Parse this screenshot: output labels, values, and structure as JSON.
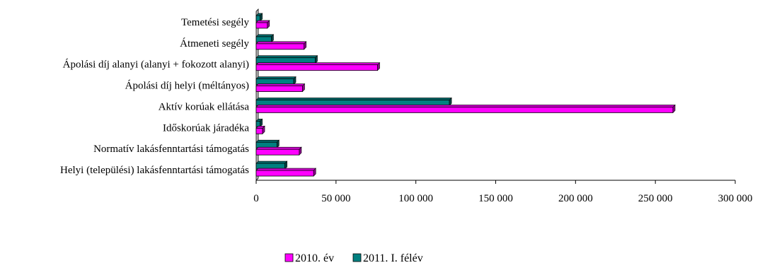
{
  "chart_data": {
    "type": "bar",
    "orientation": "horizontal",
    "style": "3d",
    "categories": [
      "Temetési segély",
      "Átmeneti segély",
      "Ápolási díj alanyi (alanyi + fokozott alanyi)",
      "Ápolási díj helyi (méltányos)",
      "Aktív korúak ellátása",
      "Időskorúak járadéka",
      "Normatív lakásfenntartási támogatás",
      "Helyi (települési) lakásfenntartási támogatás"
    ],
    "series": [
      {
        "name": "2010. év",
        "color": "#ff00ff",
        "values": [
          7000,
          30000,
          76000,
          29000,
          261000,
          4000,
          27000,
          36000
        ]
      },
      {
        "name": "2011. I. félév",
        "color": "#008080",
        "values": [
          2500,
          9500,
          37000,
          23500,
          121000,
          2500,
          13000,
          18000
        ]
      }
    ],
    "xlim": [
      0,
      300000
    ],
    "xticks": [
      0,
      50000,
      100000,
      150000,
      200000,
      250000,
      300000
    ],
    "xtick_labels": [
      "0",
      "50 000",
      "100 000",
      "150 000",
      "200 000",
      "250 000",
      "300 000"
    ],
    "grid": false,
    "legend_position": "bottom"
  }
}
